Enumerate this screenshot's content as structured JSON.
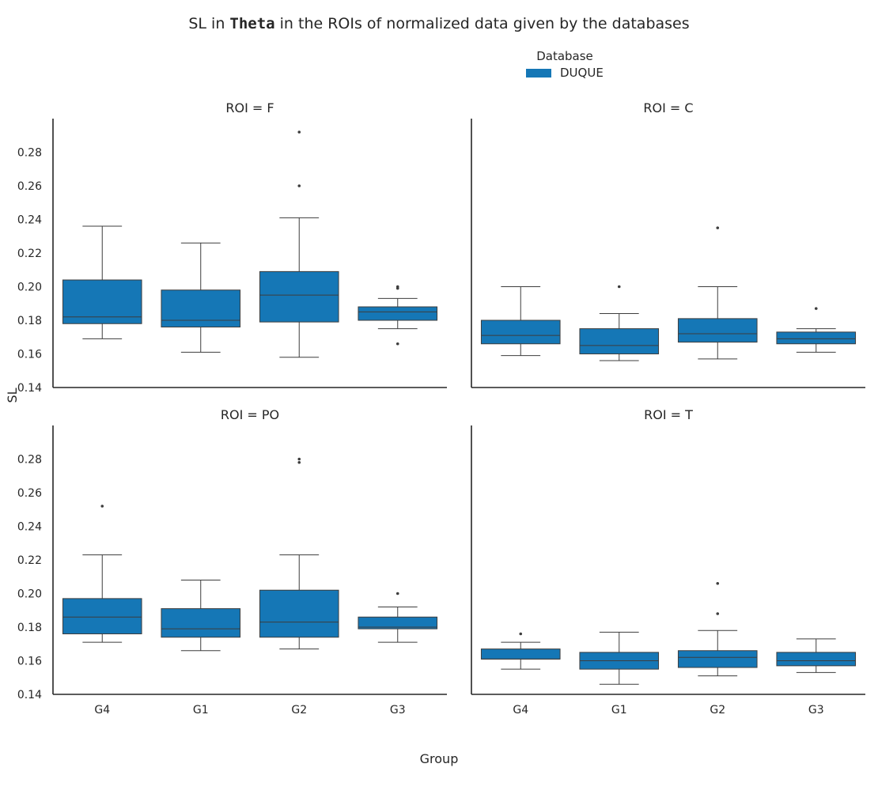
{
  "chart_data": {
    "type": "box",
    "title_prefix": "SL in ",
    "title_bold": "Theta",
    "title_suffix": " in the ROIs of normalized data given by the databases",
    "xlabel": "Group",
    "ylabel": "SL",
    "ylim": [
      0.14,
      0.3
    ],
    "yticks": [
      "0.14",
      "0.16",
      "0.18",
      "0.20",
      "0.22",
      "0.24",
      "0.26",
      "0.28"
    ],
    "categories": [
      "G4",
      "G1",
      "G2",
      "G3"
    ],
    "legend": {
      "title": "Database",
      "entries": [
        {
          "name": "DUQUE",
          "color": "#1577b6"
        }
      ],
      "placement": "top-center"
    },
    "colors": {
      "box": "#1577b6",
      "line": "#3d3d3d",
      "axis": "#262626"
    },
    "panels": [
      {
        "title": "ROI = F",
        "boxes": [
          {
            "group": "G4",
            "whisker_low": 0.169,
            "q1": 0.178,
            "median": 0.182,
            "q3": 0.204,
            "whisker_high": 0.236,
            "outliers": []
          },
          {
            "group": "G1",
            "whisker_low": 0.161,
            "q1": 0.176,
            "median": 0.18,
            "q3": 0.198,
            "whisker_high": 0.226,
            "outliers": []
          },
          {
            "group": "G2",
            "whisker_low": 0.158,
            "q1": 0.179,
            "median": 0.195,
            "q3": 0.209,
            "whisker_high": 0.241,
            "outliers": [
              0.26,
              0.292
            ]
          },
          {
            "group": "G3",
            "whisker_low": 0.175,
            "q1": 0.18,
            "median": 0.185,
            "q3": 0.188,
            "whisker_high": 0.193,
            "outliers": [
              0.199,
              0.2,
              0.166
            ]
          }
        ]
      },
      {
        "title": "ROI = C",
        "boxes": [
          {
            "group": "G4",
            "whisker_low": 0.159,
            "q1": 0.166,
            "median": 0.171,
            "q3": 0.18,
            "whisker_high": 0.2,
            "outliers": []
          },
          {
            "group": "G1",
            "whisker_low": 0.156,
            "q1": 0.16,
            "median": 0.165,
            "q3": 0.175,
            "whisker_high": 0.184,
            "outliers": [
              0.2
            ]
          },
          {
            "group": "G2",
            "whisker_low": 0.157,
            "q1": 0.167,
            "median": 0.172,
            "q3": 0.181,
            "whisker_high": 0.2,
            "outliers": [
              0.235
            ]
          },
          {
            "group": "G3",
            "whisker_low": 0.161,
            "q1": 0.166,
            "median": 0.169,
            "q3": 0.173,
            "whisker_high": 0.175,
            "outliers": [
              0.187
            ]
          }
        ]
      },
      {
        "title": "ROI = PO",
        "boxes": [
          {
            "group": "G4",
            "whisker_low": 0.171,
            "q1": 0.176,
            "median": 0.186,
            "q3": 0.197,
            "whisker_high": 0.223,
            "outliers": [
              0.252
            ]
          },
          {
            "group": "G1",
            "whisker_low": 0.166,
            "q1": 0.174,
            "median": 0.179,
            "q3": 0.191,
            "whisker_high": 0.208,
            "outliers": []
          },
          {
            "group": "G2",
            "whisker_low": 0.167,
            "q1": 0.174,
            "median": 0.183,
            "q3": 0.202,
            "whisker_high": 0.223,
            "outliers": [
              0.278,
              0.28
            ]
          },
          {
            "group": "G3",
            "whisker_low": 0.171,
            "q1": 0.179,
            "median": 0.18,
            "q3": 0.186,
            "whisker_high": 0.192,
            "outliers": [
              0.2
            ]
          }
        ]
      },
      {
        "title": "ROI = T",
        "boxes": [
          {
            "group": "G4",
            "whisker_low": 0.155,
            "q1": 0.161,
            "median": 0.161,
            "q3": 0.167,
            "whisker_high": 0.171,
            "outliers": [
              0.176
            ]
          },
          {
            "group": "G1",
            "whisker_low": 0.146,
            "q1": 0.155,
            "median": 0.16,
            "q3": 0.165,
            "whisker_high": 0.177,
            "outliers": []
          },
          {
            "group": "G2",
            "whisker_low": 0.151,
            "q1": 0.156,
            "median": 0.162,
            "q3": 0.166,
            "whisker_high": 0.178,
            "outliers": [
              0.188,
              0.206
            ]
          },
          {
            "group": "G3",
            "whisker_low": 0.153,
            "q1": 0.157,
            "median": 0.16,
            "q3": 0.165,
            "whisker_high": 0.173,
            "outliers": []
          }
        ]
      }
    ]
  }
}
